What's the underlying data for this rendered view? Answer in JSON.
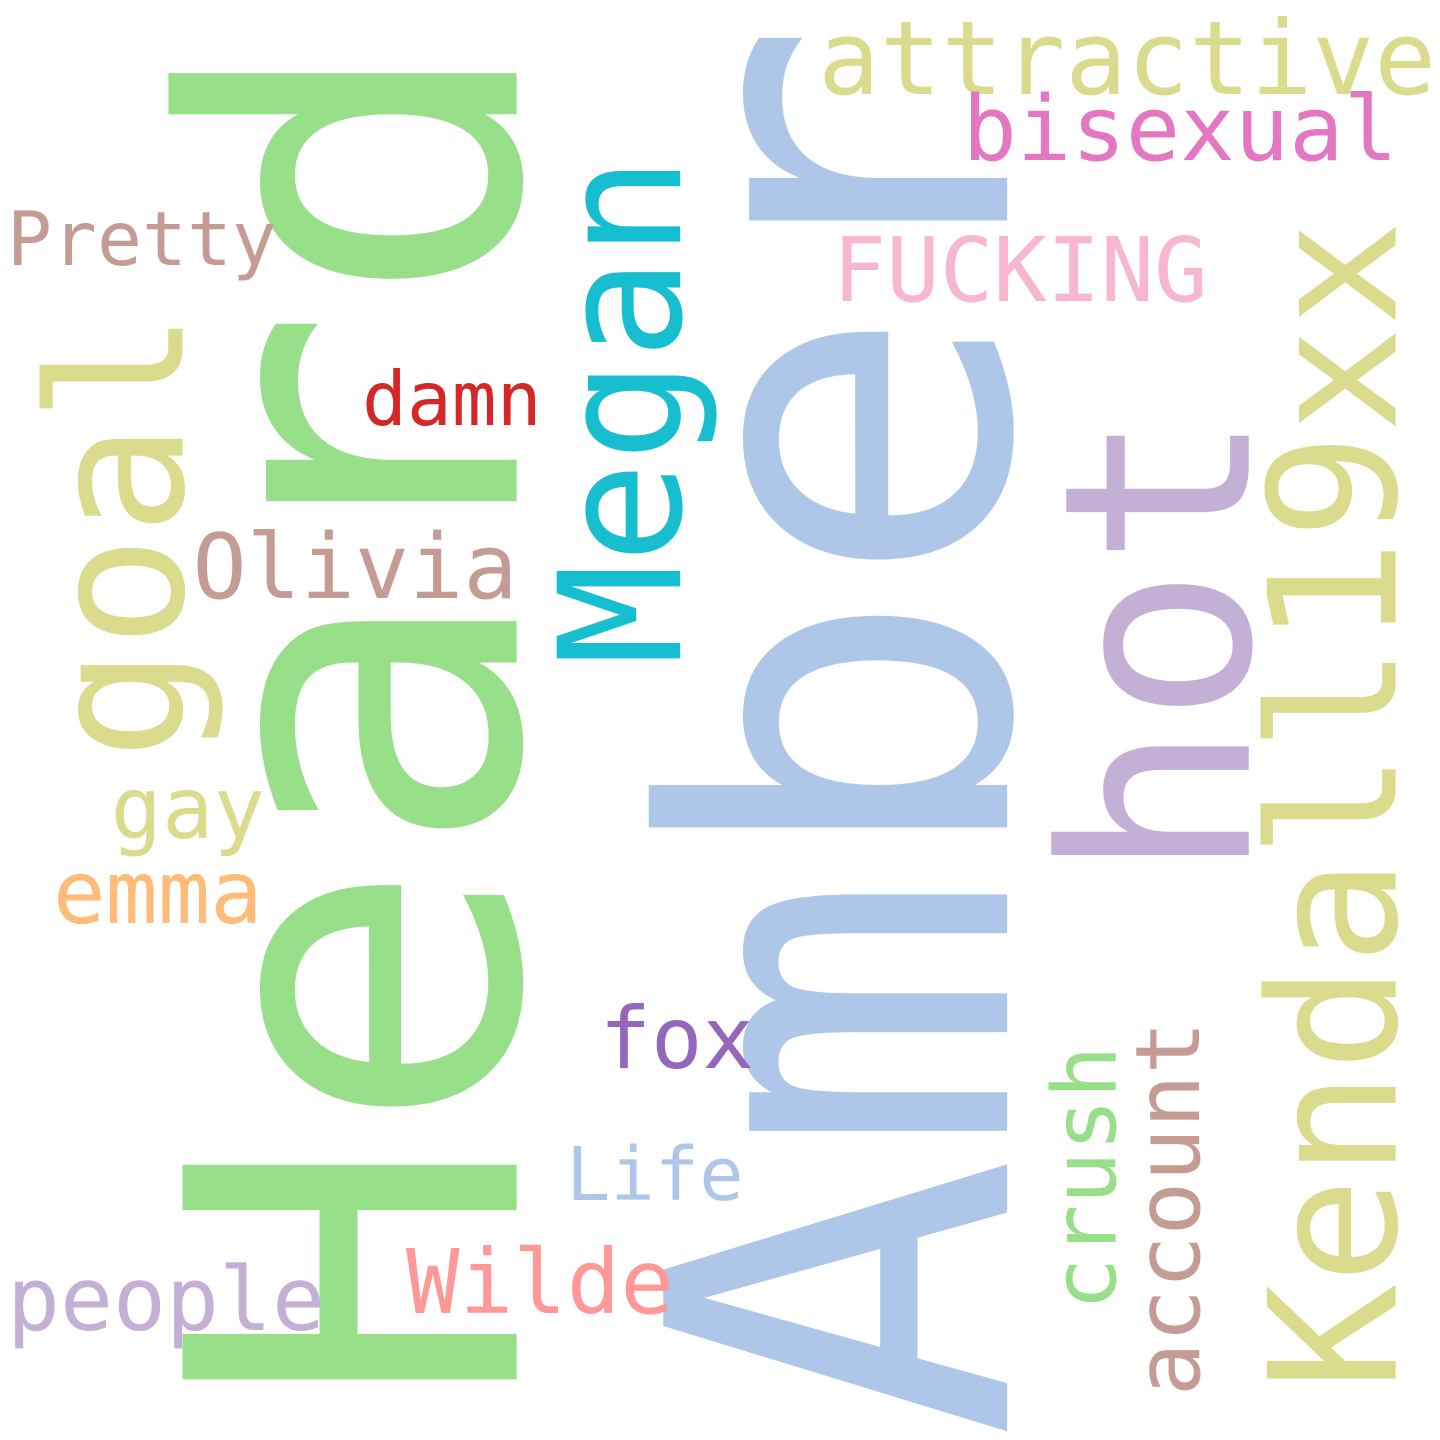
{
  "words": [
    {
      "text": "Heard",
      "color": "#98df8a"
    },
    {
      "text": "Amber",
      "color": "#aec7e8"
    },
    {
      "text": "Kendall19xx",
      "color": "#dbdb8d"
    },
    {
      "text": "hot",
      "color": "#c5b0d5"
    },
    {
      "text": "Megan",
      "color": "#17becf"
    },
    {
      "text": "goal",
      "color": "#dbdb8d"
    },
    {
      "text": "attractive",
      "color": "#dbdb8d"
    },
    {
      "text": "bisexual",
      "color": "#e377c2"
    },
    {
      "text": "FUCKING",
      "color": "#f7b6d2"
    },
    {
      "text": "Pretty",
      "color": "#c49c94"
    },
    {
      "text": "damn",
      "color": "#d62728"
    },
    {
      "text": "Olivia",
      "color": "#c49c94"
    },
    {
      "text": "gay",
      "color": "#dbdb8d"
    },
    {
      "text": "emma",
      "color": "#ffbb78"
    },
    {
      "text": "fox",
      "color": "#9467bd"
    },
    {
      "text": "crush",
      "color": "#98df8a"
    },
    {
      "text": "account",
      "color": "#c49c94"
    },
    {
      "text": "Life",
      "color": "#aec7e8"
    },
    {
      "text": "people",
      "color": "#c5b0d5"
    },
    {
      "text": "Wilde",
      "color": "#ff9896"
    }
  ]
}
